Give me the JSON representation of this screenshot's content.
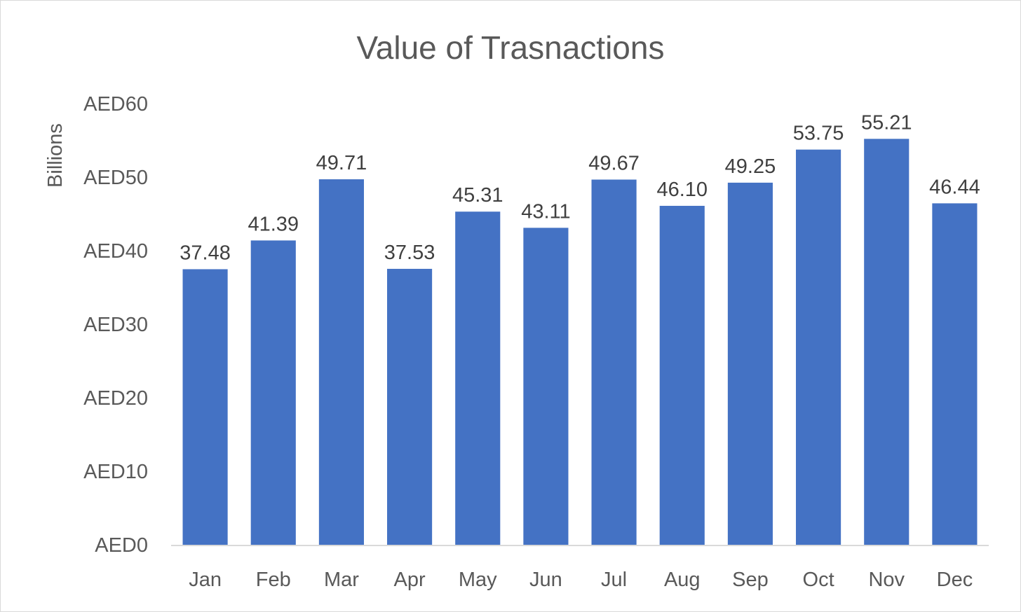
{
  "chart_data": {
    "type": "bar",
    "title": "Value of Trasnactions",
    "ylabel": "Billions",
    "xlabel": "",
    "categories": [
      "Jan",
      "Feb",
      "Mar",
      "Apr",
      "May",
      "Jun",
      "Jul",
      "Aug",
      "Sep",
      "Oct",
      "Nov",
      "Dec"
    ],
    "values": [
      37.48,
      41.39,
      49.71,
      37.53,
      45.31,
      43.11,
      49.67,
      46.1,
      49.25,
      53.75,
      55.21,
      46.44
    ],
    "data_labels": [
      "37.48",
      "41.39",
      "49.71",
      "37.53",
      "45.31",
      "43.11",
      "49.67",
      "46.10",
      "49.25",
      "53.75",
      "55.21",
      "46.44"
    ],
    "ylim": [
      0,
      60
    ],
    "yticks": [
      0,
      10,
      20,
      30,
      40,
      50,
      60
    ],
    "ytick_labels": [
      "AED0",
      "AED10",
      "AED20",
      "AED30",
      "AED40",
      "AED50",
      "AED60"
    ],
    "grid": false,
    "legend": "none",
    "colors": {
      "bar": "#4472c4",
      "axis_line": "#d9d9d9",
      "text": "#595959"
    }
  }
}
